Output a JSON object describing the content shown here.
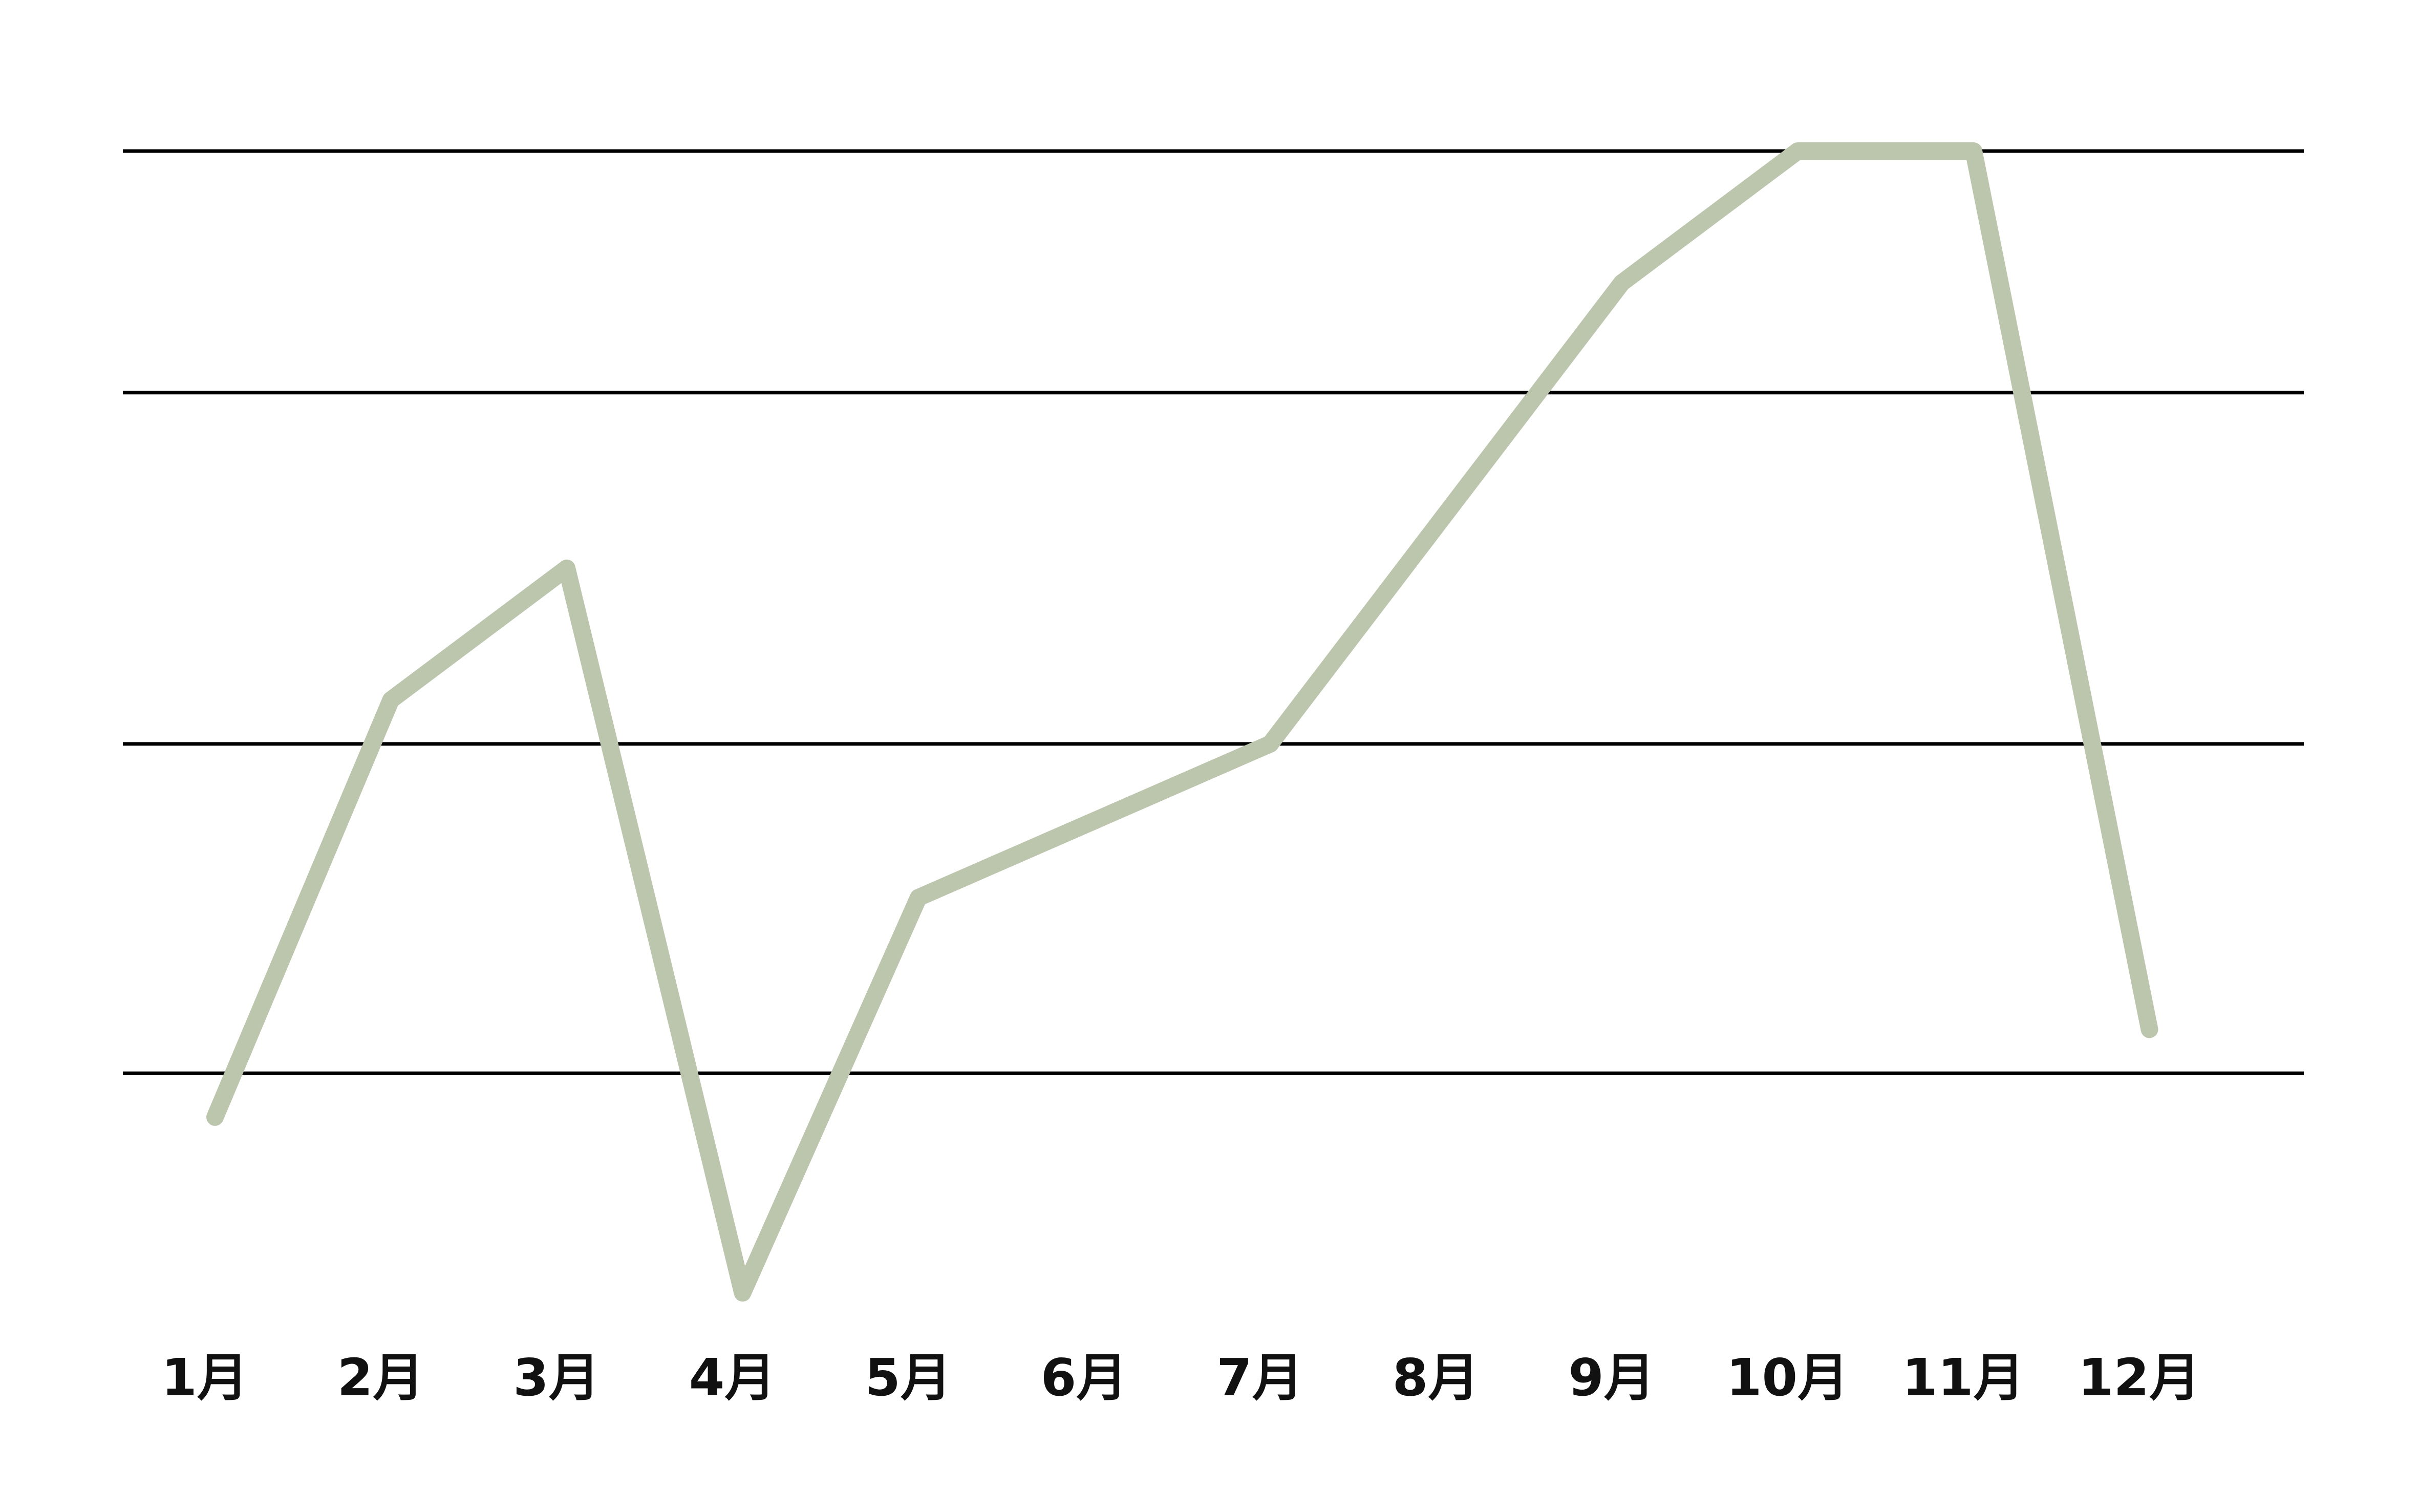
{
  "chart_data": {
    "type": "line",
    "title": "",
    "xlabel": "",
    "ylabel": "",
    "categories": [
      "1月",
      "2月",
      "3月",
      "4月",
      "5月",
      "6月",
      "7月",
      "8月",
      "9月",
      "10月",
      "11月",
      "12月"
    ],
    "series": [
      {
        "values": [
          0.8,
          2.7,
          3.3,
          0.0,
          1.8,
          null,
          2.5,
          null,
          4.6,
          5.2,
          5.2,
          1.2
        ]
      }
    ],
    "ylim": [
      0,
      5.2
    ],
    "y_gridlines": [
      1.0,
      2.5,
      4.1,
      5.2
    ],
    "y_tick_labels_shown": false,
    "grid": true,
    "legend": "none",
    "colors": {
      "line": "#bcc6ac",
      "grid": "#000000",
      "label": "#111111"
    }
  }
}
